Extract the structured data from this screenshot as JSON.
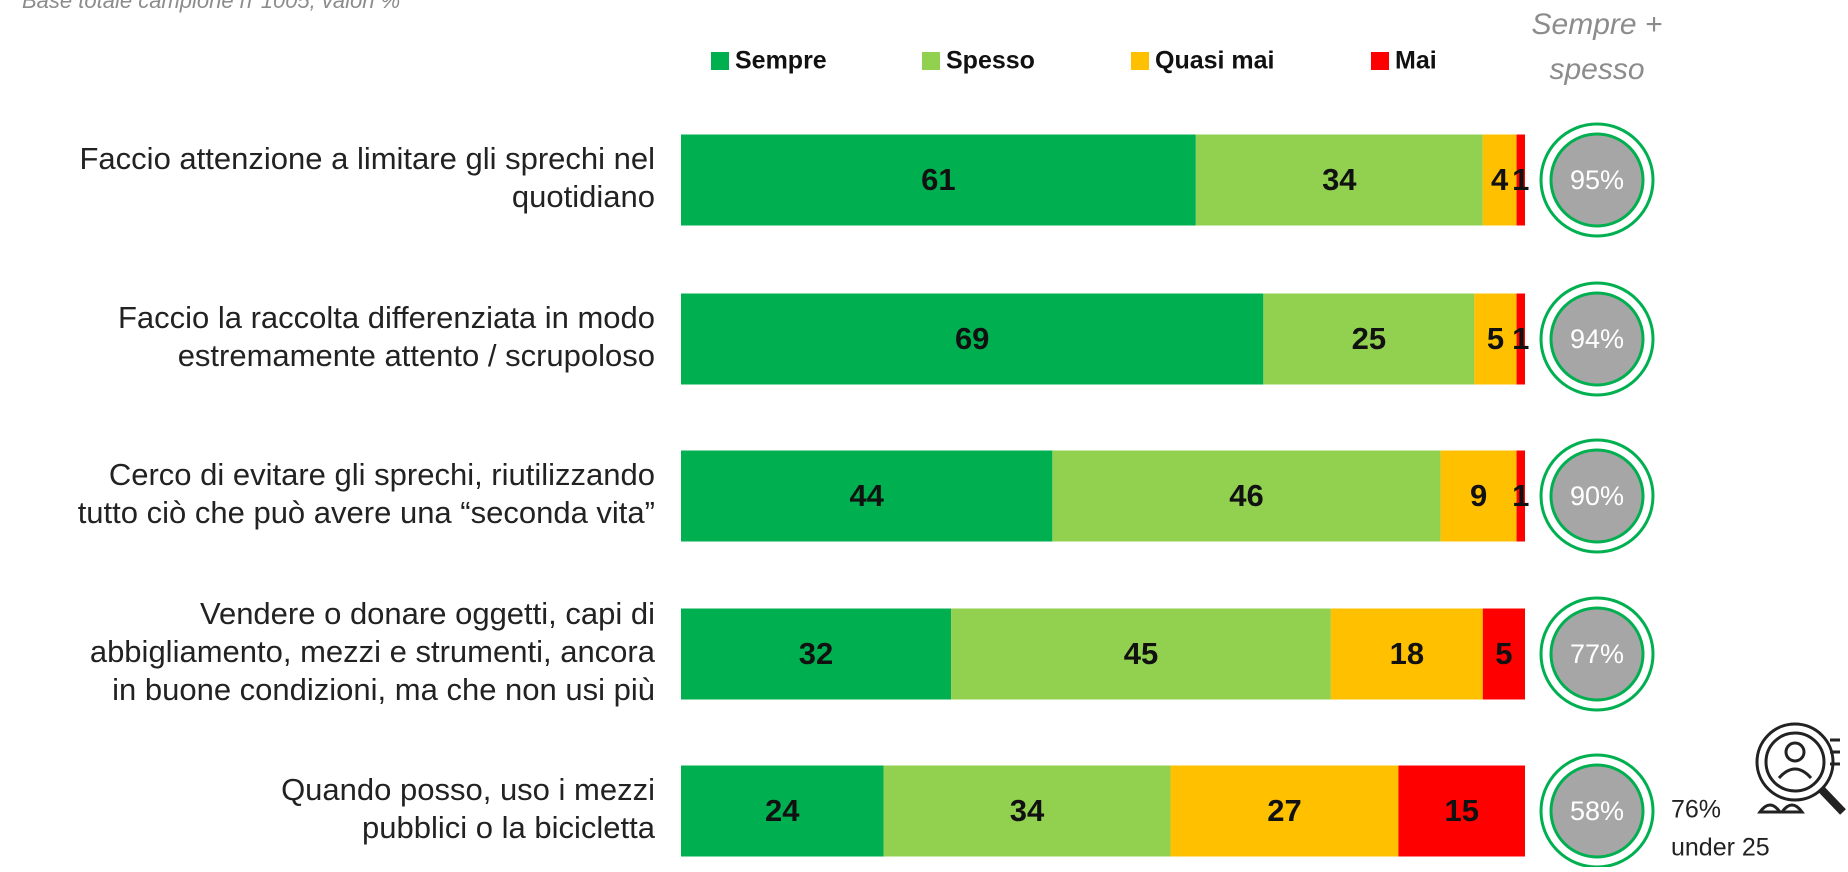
{
  "chart_data": {
    "type": "stacked-bar",
    "subtitle": "Base totale campione n°1005, valori %",
    "categories": [
      [
        "Faccio attenzione a limitare gli sprechi nel",
        "quotidiano"
      ],
      [
        "Faccio la raccolta differenziata in modo",
        "estremamente attento / scrupoloso"
      ],
      [
        "Cerco di evitare gli sprechi, riutilizzando",
        "tutto ciò che può avere una “seconda vita”"
      ],
      [
        "Vendere o donare oggetti, capi di",
        "abbigliamento, mezzi e strumenti, ancora",
        "in buone condizioni, ma che non usi più"
      ],
      [
        "Quando posso, uso i mezzi",
        "pubblici o la bicicletta"
      ]
    ],
    "series": [
      {
        "name": "Sempre",
        "color": "#00b050",
        "values": [
          61,
          69,
          44,
          32,
          24
        ]
      },
      {
        "name": "Spesso",
        "color": "#92d050",
        "values": [
          34,
          25,
          46,
          45,
          34
        ]
      },
      {
        "name": "Quasi mai",
        "color": "#ffc000",
        "values": [
          4,
          5,
          9,
          18,
          27
        ]
      },
      {
        "name": "Mai",
        "color": "#ff0000",
        "values": [
          1,
          1,
          1,
          5,
          15
        ]
      }
    ],
    "xlim": [
      0,
      100
    ],
    "totals": {
      "title": [
        "Sempre +",
        "spesso"
      ],
      "values": [
        95,
        94,
        90,
        77,
        58
      ],
      "value_labels": [
        "95%",
        "94%",
        "90%",
        "77%",
        "58%"
      ]
    },
    "annotation": [
      "76%",
      "under 25"
    ]
  }
}
